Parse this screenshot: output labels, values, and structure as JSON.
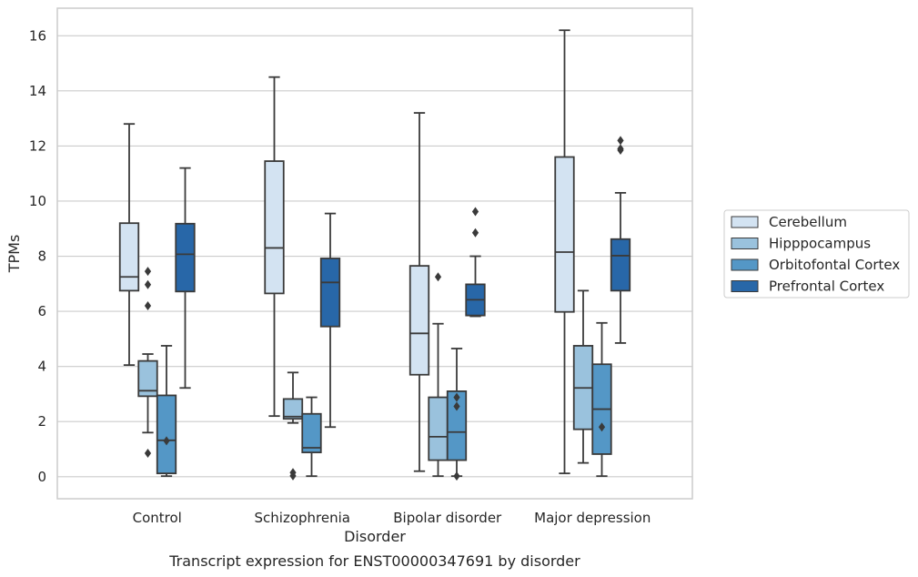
{
  "caption": "Transcript expression for ENST00000347691 by disorder",
  "chart_data": {
    "type": "boxplot",
    "title": "",
    "xlabel": "Disorder",
    "ylabel": "TPMs",
    "ylim": [
      -0.8,
      17
    ],
    "yticks": [
      0,
      2,
      4,
      6,
      8,
      10,
      12,
      14,
      16
    ],
    "grid": "horizontal",
    "legend_position": "right",
    "categories": [
      "Control",
      "Schizophrenia",
      "Bipolar disorder",
      "Major depression"
    ],
    "series": [
      {
        "name": "Cerebellum",
        "color": "#d3e3f2",
        "boxes": [
          {
            "whislo": 4.05,
            "q1": 6.75,
            "med": 7.25,
            "q3": 9.2,
            "whishi": 12.8,
            "fliers": []
          },
          {
            "whislo": 2.2,
            "q1": 6.65,
            "med": 8.3,
            "q3": 11.45,
            "whishi": 14.5,
            "fliers": []
          },
          {
            "whislo": 0.2,
            "q1": 3.7,
            "med": 5.2,
            "q3": 7.65,
            "whishi": 13.2,
            "fliers": []
          },
          {
            "whislo": 0.12,
            "q1": 5.98,
            "med": 8.15,
            "q3": 11.6,
            "whishi": 16.2,
            "fliers": []
          }
        ]
      },
      {
        "name": "Hipppocampus",
        "color": "#9ac2dd",
        "boxes": [
          {
            "whislo": 1.6,
            "q1": 2.92,
            "med": 3.12,
            "q3": 4.2,
            "whishi": 4.45,
            "fliers": [
              0.85,
              6.2,
              6.97,
              7.45
            ]
          },
          {
            "whislo": 1.95,
            "q1": 2.1,
            "med": 2.18,
            "q3": 2.82,
            "whishi": 3.78,
            "fliers": [
              0.03,
              0.15
            ]
          },
          {
            "whislo": 0.02,
            "q1": 0.6,
            "med": 1.45,
            "q3": 2.88,
            "whishi": 5.55,
            "fliers": [
              7.25
            ]
          },
          {
            "whislo": 0.5,
            "q1": 1.72,
            "med": 3.22,
            "q3": 4.75,
            "whishi": 6.75,
            "fliers": []
          }
        ]
      },
      {
        "name": "Orbitofontal Cortex",
        "color": "#5497c6",
        "boxes": [
          {
            "whislo": 0.02,
            "q1": 0.12,
            "med": 1.32,
            "q3": 2.95,
            "whishi": 4.75,
            "fliers": [
              1.3
            ]
          },
          {
            "whislo": 0.02,
            "q1": 0.88,
            "med": 1.05,
            "q3": 2.28,
            "whishi": 2.88,
            "fliers": []
          },
          {
            "whislo": 0.02,
            "q1": 0.6,
            "med": 1.62,
            "q3": 3.1,
            "whishi": 4.65,
            "fliers": [
              0.02,
              2.55,
              2.88
            ]
          },
          {
            "whislo": 0.02,
            "q1": 0.82,
            "med": 2.45,
            "q3": 4.08,
            "whishi": 5.58,
            "fliers": [
              1.8
            ]
          }
        ]
      },
      {
        "name": "Prefrontal Cortex",
        "color": "#2867a8",
        "boxes": [
          {
            "whislo": 3.22,
            "q1": 6.72,
            "med": 8.07,
            "q3": 9.18,
            "whishi": 11.2,
            "fliers": []
          },
          {
            "whislo": 1.8,
            "q1": 5.45,
            "med": 7.05,
            "q3": 7.92,
            "whishi": 9.55,
            "fliers": []
          },
          {
            "whislo": 5.82,
            "q1": 5.85,
            "med": 6.42,
            "q3": 6.98,
            "whishi": 8.0,
            "fliers": [
              8.85,
              9.62
            ]
          },
          {
            "whislo": 4.85,
            "q1": 6.75,
            "med": 8.02,
            "q3": 8.62,
            "whishi": 10.3,
            "fliers": [
              11.85,
              11.9,
              12.2
            ]
          }
        ]
      }
    ]
  }
}
